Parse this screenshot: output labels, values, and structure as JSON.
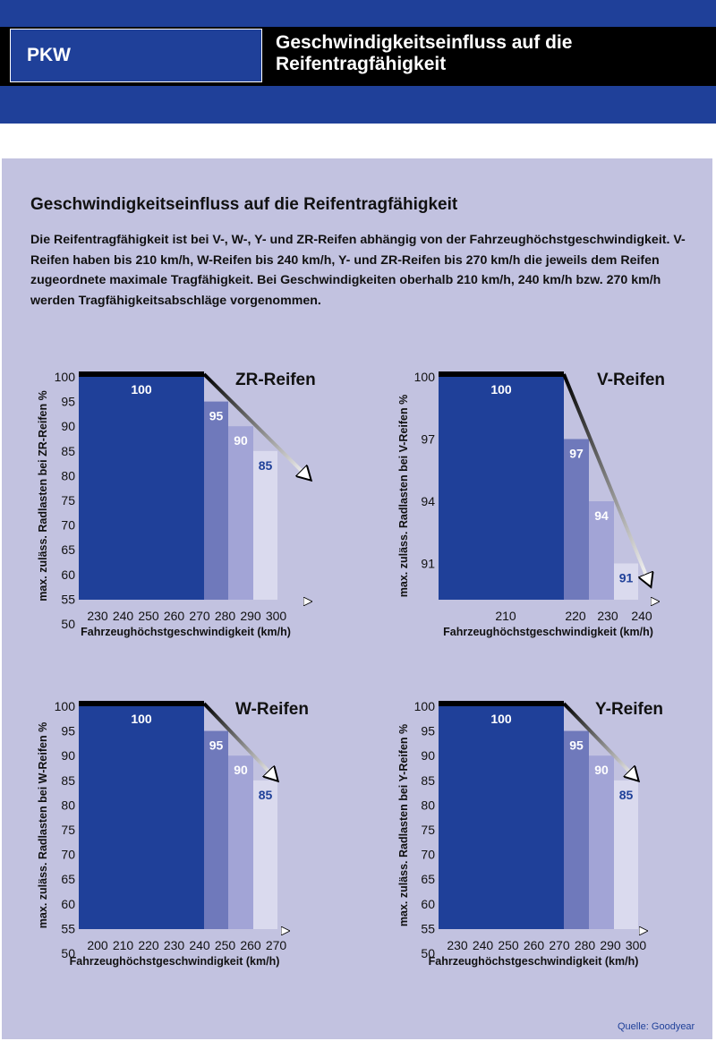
{
  "header": {
    "category": "PKW",
    "title": "Geschwindigkeitseinfluss auf die Reifentragfähigkeit"
  },
  "section": {
    "title": "Geschwindigkeitseinfluss auf die Reifentragfähigkeit",
    "intro": "Die Reifentragfähigkeit ist bei V-, W-, Y- und ZR-Reifen abhängig von der Fahrzeughöchstgeschwindigkeit. V-Reifen haben bis 210 km/h, W-Reifen bis 240 km/h, Y- und ZR-Reifen bis 270 km/h die jeweils dem Reifen zugeordnete maximale Tragfähigkeit. Bei Geschwindigkeiten oberhalb 210 km/h, 240 km/h bzw. 270 km/h werden Tragfähigkeitsabschläge vorgenommen."
  },
  "source": "Quelle: Goodyear",
  "colors": {
    "dark_blue": "#1f4099",
    "mid_blue": "#6f79bb",
    "light_blue": "#a2a4d6",
    "pale_blue": "#dadaee",
    "panel": "#c2c2e0"
  },
  "chart_data": [
    {
      "type": "bar",
      "title": "ZR-Reifen",
      "xlabel": "Fahrzeughöchstgeschwindigkeit (km/h)",
      "ylabel": "max. zuläss. Radlasten bei ZR-Reifen %",
      "x_ticks": [
        "230",
        "240",
        "250",
        "260",
        "270",
        "280",
        "290",
        "300"
      ],
      "y_ticks": [
        100,
        95,
        90,
        85,
        80,
        75,
        70,
        65,
        60,
        55,
        50
      ],
      "bars": [
        {
          "from": 225,
          "to": 270,
          "value": 100,
          "label": "100"
        },
        {
          "from": 270,
          "to": 280,
          "value": 95,
          "label": "95"
        },
        {
          "from": 280,
          "to": 290,
          "value": 90,
          "label": "90"
        },
        {
          "from": 290,
          "to": 300,
          "value": 85,
          "label": "85"
        }
      ]
    },
    {
      "type": "bar",
      "title": "V-Reifen",
      "xlabel": "Fahrzeughöchstgeschwindigkeit (km/h)",
      "ylabel": "max. zuläss. Radlasten bei V-Reifen %",
      "x_ticks": [
        "210",
        "220",
        "230",
        "240"
      ],
      "y_ticks": [
        100,
        97,
        94,
        91
      ],
      "bars": [
        {
          "from": 210,
          "to": 210,
          "value": 100,
          "label": "100"
        },
        {
          "from": 210,
          "to": 220,
          "value": 97,
          "label": "97"
        },
        {
          "from": 220,
          "to": 230,
          "value": 94,
          "label": "94"
        },
        {
          "from": 230,
          "to": 240,
          "value": 91,
          "label": "91"
        }
      ]
    },
    {
      "type": "bar",
      "title": "W-Reifen",
      "xlabel": "Fahrzeughöchstgeschwindigkeit (km/h)",
      "ylabel": "max. zuläss. Radlasten bei W-Reifen %",
      "x_ticks": [
        "200",
        "210",
        "220",
        "230",
        "240",
        "250",
        "260",
        "270"
      ],
      "y_ticks": [
        100,
        95,
        90,
        85,
        80,
        75,
        70,
        65,
        60,
        55,
        50
      ],
      "bars": [
        {
          "from": 195,
          "to": 240,
          "value": 100,
          "label": "100"
        },
        {
          "from": 240,
          "to": 250,
          "value": 95,
          "label": "95"
        },
        {
          "from": 250,
          "to": 260,
          "value": 90,
          "label": "90"
        },
        {
          "from": 260,
          "to": 270,
          "value": 85,
          "label": "85"
        }
      ]
    },
    {
      "type": "bar",
      "title": "Y-Reifen",
      "xlabel": "Fahrzeughöchstgeschwindigkeit (km/h)",
      "ylabel": "max. zuläss. Radlasten bei Y-Reifen %",
      "x_ticks": [
        "230",
        "240",
        "250",
        "260",
        "270",
        "280",
        "290",
        "300"
      ],
      "y_ticks": [
        100,
        95,
        90,
        85,
        80,
        75,
        70,
        65,
        60,
        55,
        50
      ],
      "bars": [
        {
          "from": 225,
          "to": 270,
          "value": 100,
          "label": "100"
        },
        {
          "from": 270,
          "to": 280,
          "value": 95,
          "label": "95"
        },
        {
          "from": 280,
          "to": 290,
          "value": 90,
          "label": "90"
        },
        {
          "from": 290,
          "to": 300,
          "value": 85,
          "label": "85"
        }
      ]
    }
  ]
}
